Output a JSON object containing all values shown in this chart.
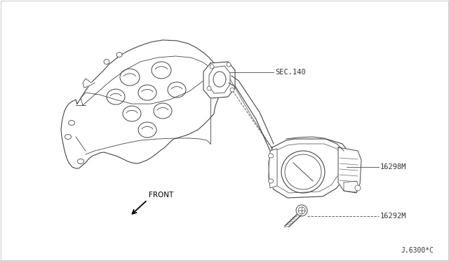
{
  "bg_color": "#ffffff",
  "line_color": "#444444",
  "text_color": "#333333",
  "label_sec140": "SEC.140",
  "label_16298m": "16298M",
  "label_16292m": "16292M",
  "label_front": "FRONT",
  "label_ref": "J.6300*C",
  "fig_width": 6.4,
  "fig_height": 3.72,
  "dpi": 100,
  "border_color": "#cccccc"
}
